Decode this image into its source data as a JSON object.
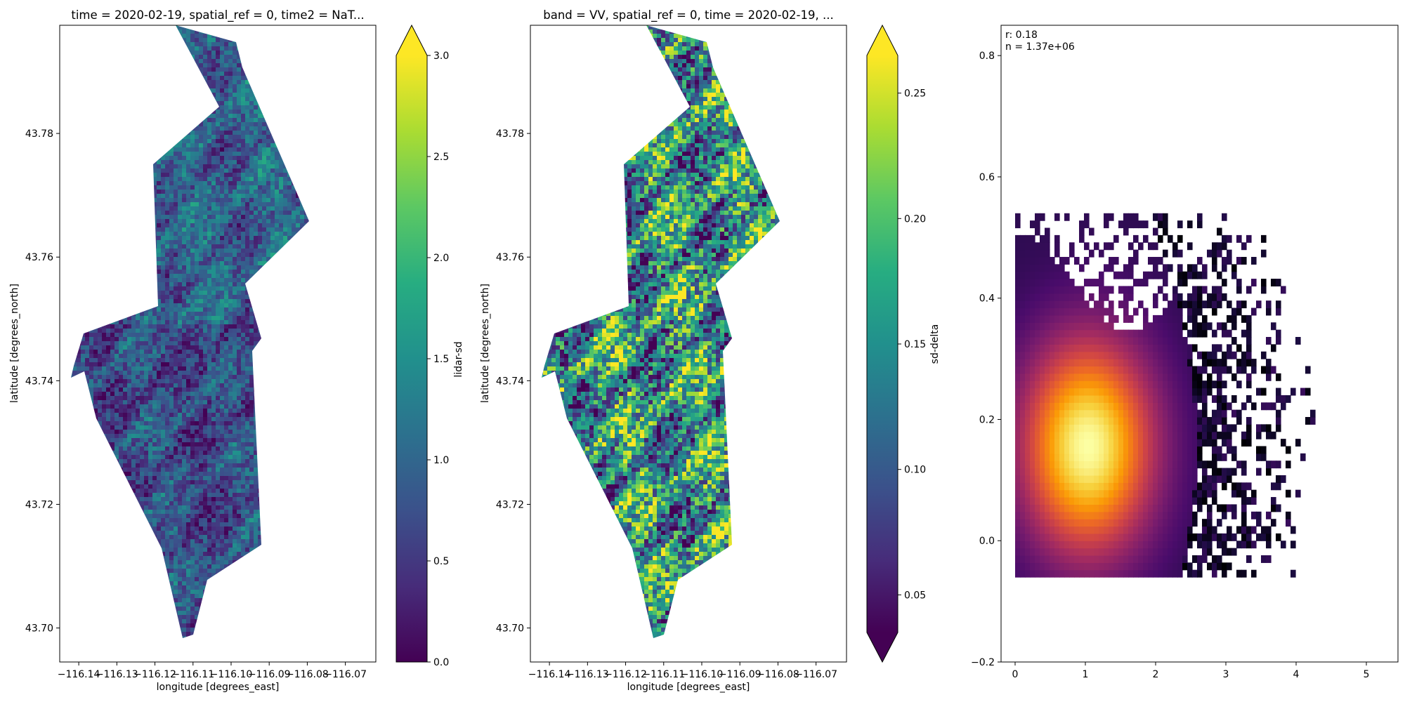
{
  "chart_data": [
    {
      "type": "heatmap",
      "title": "time = 2020-02-19, spatial_ref = 0, time2 = NaT...",
      "xlabel": "longitude [degrees_east]",
      "ylabel": "latitude [degrees_north]",
      "xlim": [
        -116.145,
        -116.062
      ],
      "ylim": [
        43.6945,
        43.7975
      ],
      "x_ticks": [
        -116.14,
        -116.13,
        -116.12,
        -116.11,
        -116.1,
        -116.09,
        -116.08,
        -116.07
      ],
      "x_tick_labels": [
        "−116.14",
        "−116.13",
        "−116.12",
        "−116.11",
        "−116.10",
        "−116.09",
        "−116.08",
        "−116.07"
      ],
      "y_ticks": [
        43.7,
        43.72,
        43.74,
        43.76,
        43.78
      ],
      "y_tick_labels": [
        "43.70",
        "43.72",
        "43.74",
        "43.76",
        "43.78"
      ],
      "colorbar": {
        "label": "lidar-sd",
        "colormap": "viridis",
        "vmin": 0.0,
        "vmax": 3.0,
        "extend": "max",
        "ticks": [
          0.0,
          0.5,
          1.0,
          1.5,
          2.0,
          2.5,
          3.0
        ],
        "tick_labels": [
          "0.0",
          "0.5",
          "1.0",
          "1.5",
          "2.0",
          "2.5",
          "3.0"
        ]
      },
      "value_distribution": {
        "mean": 0.95,
        "spread": 0.45
      }
    },
    {
      "type": "heatmap",
      "title": "band = VV, spatial_ref = 0, time = 2020-02-19, ...",
      "xlabel": "longitude [degrees_east]",
      "ylabel": "latitude [degrees_north]",
      "xlim": [
        -116.145,
        -116.062
      ],
      "ylim": [
        43.6945,
        43.7975
      ],
      "x_ticks": [
        -116.14,
        -116.13,
        -116.12,
        -116.11,
        -116.1,
        -116.09,
        -116.08,
        -116.07
      ],
      "x_tick_labels": [
        "−116.14",
        "−116.13",
        "−116.12",
        "−116.11",
        "−116.10",
        "−116.09",
        "−116.08",
        "−116.07"
      ],
      "y_ticks": [
        43.7,
        43.72,
        43.74,
        43.76,
        43.78
      ],
      "y_tick_labels": [
        "43.70",
        "43.72",
        "43.74",
        "43.76",
        "43.78"
      ],
      "colorbar": {
        "label": "sd-delta",
        "colormap": "viridis",
        "vmin": 0.035,
        "vmax": 0.265,
        "extend": "both",
        "ticks": [
          0.05,
          0.1,
          0.15,
          0.2,
          0.25
        ],
        "tick_labels": [
          "0.05",
          "0.10",
          "0.15",
          "0.20",
          "0.25"
        ]
      },
      "value_distribution": {
        "mean": 0.15,
        "spread": 0.08
      }
    },
    {
      "type": "heatmap",
      "title": "",
      "xlabel": "",
      "ylabel": "",
      "xlim": [
        -0.2,
        5.45
      ],
      "ylim": [
        -0.2,
        0.85
      ],
      "x_ticks": [
        0,
        1,
        2,
        3,
        4,
        5
      ],
      "x_tick_labels": [
        "0",
        "1",
        "2",
        "3",
        "4",
        "5"
      ],
      "y_ticks": [
        -0.2,
        0.0,
        0.2,
        0.4,
        0.6,
        0.8
      ],
      "y_tick_labels": [
        "−0.2",
        "0.0",
        "0.2",
        "0.4",
        "0.6",
        "0.8"
      ],
      "colormap": "inferno",
      "annotations": [
        "r: 0.18",
        "n = 1.37e+06"
      ],
      "density_peak": {
        "x": 1.0,
        "y": 0.15
      },
      "x_extent": [
        0.0,
        5.45
      ],
      "y_extent": [
        -0.06,
        0.54
      ]
    }
  ],
  "colors": {
    "viridis": [
      "#440154",
      "#472c7a",
      "#3b518b",
      "#2c718e",
      "#21908d",
      "#27ad81",
      "#5cc863",
      "#aadc32",
      "#fde725"
    ],
    "inferno": [
      "#000004",
      "#1b0c41",
      "#4a0c6b",
      "#781c6d",
      "#a52c60",
      "#cf4446",
      "#ed6925",
      "#fb9b06",
      "#f7d13d",
      "#fcffa4"
    ]
  }
}
